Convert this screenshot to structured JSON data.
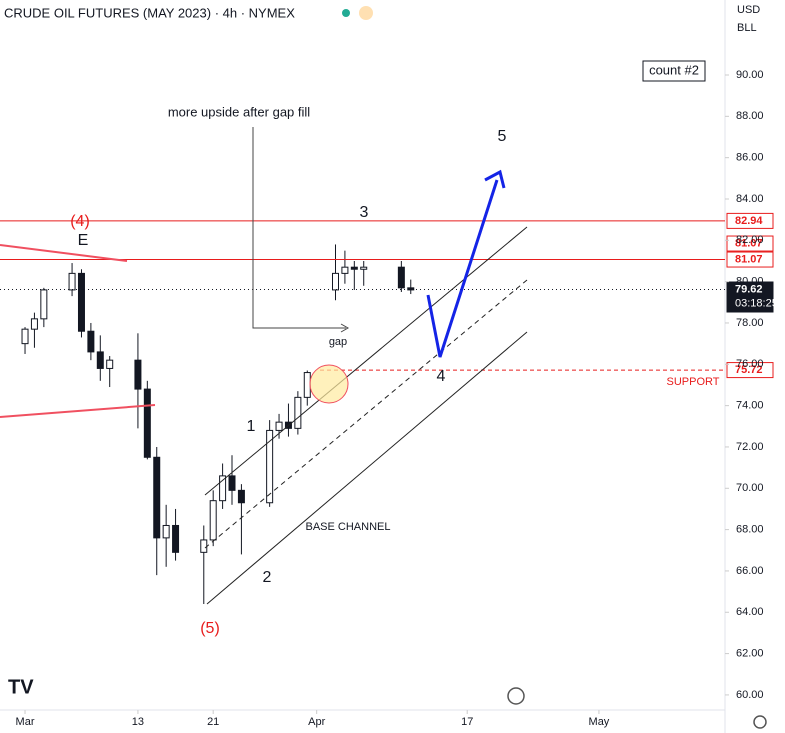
{
  "chart_data": {
    "type": "candlestick",
    "title": "CRUDE OIL FUTURES (MAY 2023) · 4h · NYMEX",
    "x": [
      0,
      1,
      2,
      5,
      6,
      7,
      8,
      9,
      12,
      13,
      14,
      15,
      16,
      19,
      20,
      21,
      22,
      23,
      26,
      27,
      28,
      29,
      30,
      33,
      34,
      35,
      36,
      40,
      41
    ],
    "open": [
      77,
      77.7,
      78.2,
      79.6,
      80.4,
      77.6,
      76.6,
      75.8,
      76.2,
      74.8,
      71.5,
      67.6,
      68.2,
      66.9,
      67.5,
      69.4,
      70.6,
      69.9,
      69.3,
      72.8,
      73.2,
      72.9,
      74.4,
      79.6,
      80.4,
      80.7,
      80.6,
      80.7,
      79.7
    ],
    "high": [
      77.8,
      78.5,
      79.7,
      80.9,
      80.6,
      78,
      77.4,
      76.4,
      77.5,
      75.2,
      72,
      69.2,
      69,
      68.2,
      69.9,
      71.2,
      71.6,
      70.2,
      73.3,
      73.6,
      74.1,
      74.7,
      75.7,
      81.8,
      81.5,
      81,
      81,
      81,
      80.1
    ],
    "low": [
      76.5,
      76.8,
      77.8,
      79.3,
      77.3,
      76.2,
      75.2,
      74.9,
      72.9,
      71.4,
      65.8,
      66.2,
      66.5,
      64.4,
      67.2,
      69,
      69.2,
      66.8,
      69.1,
      72.4,
      72.5,
      72.6,
      74,
      79.1,
      79.9,
      79.6,
      79.8,
      79.5,
      79.4
    ],
    "close": [
      77.7,
      78.2,
      79.6,
      80.4,
      77.6,
      76.6,
      75.8,
      76.2,
      74.8,
      71.5,
      67.6,
      68.2,
      66.9,
      67.5,
      69.4,
      70.6,
      69.9,
      69.3,
      72.8,
      73.2,
      72.9,
      74.4,
      75.6,
      80.4,
      80.7,
      80.6,
      80.7,
      79.7,
      79.6
    ],
    "xlim": [
      -2.66,
      74.4
    ],
    "xticks": [
      {
        "value": 0,
        "label": "Mar"
      },
      {
        "value": 12,
        "label": "13"
      },
      {
        "value": 20,
        "label": "21"
      },
      {
        "value": 31,
        "label": "Apr"
      },
      {
        "value": 47,
        "label": "17"
      },
      {
        "value": 61,
        "label": "May"
      }
    ],
    "ylim": [
      59.27,
      93.63
    ],
    "yticks": [
      {
        "value": 60,
        "label": "60.00"
      },
      {
        "value": 62,
        "label": "62.00"
      },
      {
        "value": 64,
        "label": "64.00"
      },
      {
        "value": 66,
        "label": "66.00"
      },
      {
        "value": 68,
        "label": "68.00"
      },
      {
        "value": 70,
        "label": "70.00"
      },
      {
        "value": 72,
        "label": "72.00"
      },
      {
        "value": 74,
        "label": "74.00"
      },
      {
        "value": 76,
        "label": "76.00"
      },
      {
        "value": 78,
        "label": "78.00"
      },
      {
        "value": 80,
        "label": "80.00"
      },
      {
        "value": 82,
        "label": "82.00"
      },
      {
        "value": 84,
        "label": "84.00"
      },
      {
        "value": 86,
        "label": "86.00"
      },
      {
        "value": 88,
        "label": "88.00"
      },
      {
        "value": 90,
        "label": "90.00"
      }
    ],
    "price_tags": [
      82.94,
      81.07,
      81.07,
      79.62,
      75.72
    ],
    "countdown": "03:18:25",
    "currency": "USD",
    "unit": "BLL",
    "count_label": "count #2",
    "annotations": [
      "(4)",
      "E",
      "3",
      "5",
      "1",
      "2",
      "4",
      "(5)",
      "gap",
      "more upside after gap fill",
      "BASE CHANNEL",
      "SUPPORT"
    ]
  }
}
